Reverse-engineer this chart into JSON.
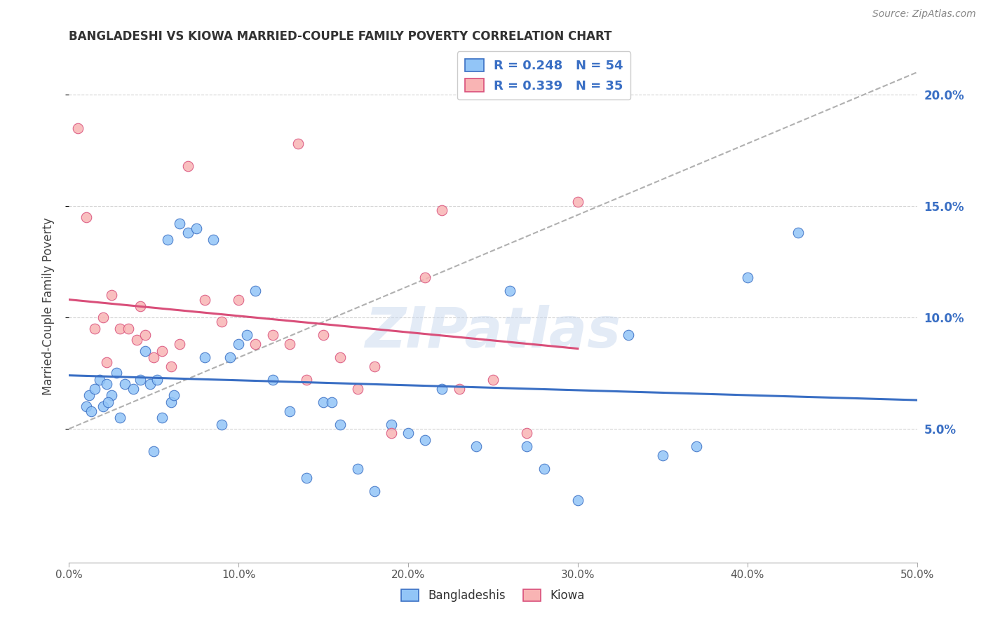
{
  "title": "BANGLADESHI VS KIOWA MARRIED-COUPLE FAMILY POVERTY CORRELATION CHART",
  "source": "Source: ZipAtlas.com",
  "ylabel": "Married-Couple Family Poverty",
  "xlabel_ticks": [
    "0.0%",
    "10.0%",
    "20.0%",
    "30.0%",
    "40.0%",
    "50.0%"
  ],
  "xlabel_vals": [
    0,
    10,
    20,
    30,
    40,
    50
  ],
  "ylabel_ticks": [
    "5.0%",
    "10.0%",
    "15.0%",
    "20.0%"
  ],
  "ylabel_vals": [
    5,
    10,
    15,
    20
  ],
  "xlim": [
    0,
    50
  ],
  "ylim": [
    -1,
    22
  ],
  "legend_text1": "R = 0.248   N = 54",
  "legend_text2": "R = 0.339   N = 35",
  "legend_label1": "Bangladeshis",
  "legend_label2": "Kiowa",
  "color_blue": "#92c5f7",
  "color_pink": "#f9b4b4",
  "line_blue": "#3a6fc4",
  "line_pink": "#d94f7a",
  "line_dashed_color": "#b0b0b0",
  "watermark": "ZIPatlas",
  "grid_color": "#d3d3d3",
  "blue_x": [
    1.2,
    1.5,
    1.8,
    2.0,
    2.2,
    2.5,
    2.8,
    3.0,
    3.3,
    3.8,
    4.2,
    4.5,
    5.0,
    5.5,
    5.8,
    6.0,
    6.5,
    7.0,
    7.5,
    8.0,
    8.5,
    9.0,
    9.5,
    10.0,
    10.5,
    11.0,
    12.0,
    13.0,
    14.0,
    15.0,
    15.5,
    16.0,
    17.0,
    18.0,
    19.0,
    20.0,
    21.0,
    22.0,
    24.0,
    26.0,
    27.0,
    28.0,
    30.0,
    33.0,
    35.0,
    37.0,
    40.0,
    43.0,
    1.0,
    1.3,
    2.3,
    4.8,
    5.2,
    6.2
  ],
  "blue_y": [
    6.5,
    6.8,
    7.2,
    6.0,
    7.0,
    6.5,
    7.5,
    5.5,
    7.0,
    6.8,
    7.2,
    8.5,
    4.0,
    5.5,
    13.5,
    6.2,
    14.2,
    13.8,
    14.0,
    8.2,
    13.5,
    5.2,
    8.2,
    8.8,
    9.2,
    11.2,
    7.2,
    5.8,
    2.8,
    6.2,
    6.2,
    5.2,
    3.2,
    2.2,
    5.2,
    4.8,
    4.5,
    6.8,
    4.2,
    11.2,
    4.2,
    3.2,
    1.8,
    9.2,
    3.8,
    4.2,
    11.8,
    13.8,
    6.0,
    5.8,
    6.2,
    7.0,
    7.2,
    6.5
  ],
  "pink_x": [
    0.5,
    1.0,
    1.5,
    2.0,
    2.5,
    3.0,
    3.5,
    4.0,
    4.5,
    5.0,
    5.5,
    6.0,
    6.5,
    7.0,
    8.0,
    9.0,
    10.0,
    11.0,
    12.0,
    13.0,
    13.5,
    14.0,
    15.0,
    16.0,
    17.0,
    18.0,
    19.0,
    21.0,
    22.0,
    23.0,
    25.0,
    27.0,
    30.0,
    2.2,
    4.2
  ],
  "pink_y": [
    18.5,
    14.5,
    9.5,
    10.0,
    11.0,
    9.5,
    9.5,
    9.0,
    9.2,
    8.2,
    8.5,
    7.8,
    8.8,
    16.8,
    10.8,
    9.8,
    10.8,
    8.8,
    9.2,
    8.8,
    17.8,
    7.2,
    9.2,
    8.2,
    6.8,
    7.8,
    4.8,
    11.8,
    14.8,
    6.8,
    7.2,
    4.8,
    15.2,
    8.0,
    10.5
  ]
}
